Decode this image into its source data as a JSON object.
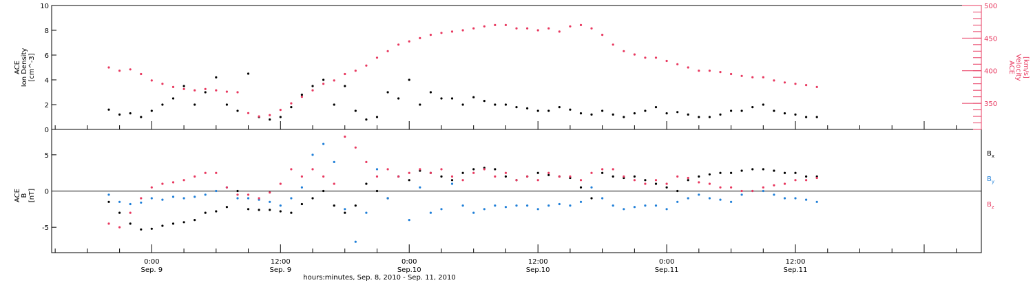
{
  "chart_data": [
    {
      "type": "scatter",
      "panel": "top",
      "ylabel_lines": [
        "ACE",
        "Ion Density",
        "[cm^-3]"
      ],
      "ylabel_right_lines": [
        "ACE",
        "Velocity",
        "[km/s]"
      ],
      "ylim": [
        0,
        10
      ],
      "ylim_right": [
        310,
        500
      ],
      "yticks": [
        "0",
        "2",
        "4",
        "6",
        "8",
        "10"
      ],
      "yticks_right": [
        "350",
        "400",
        "450",
        "500"
      ],
      "series": [
        {
          "axis": "left",
          "color": "#000000",
          "x": [
            -4,
            -3,
            -2,
            -1,
            0,
            1,
            2,
            3,
            4,
            5,
            6,
            7,
            8,
            9,
            10,
            11,
            12,
            13,
            14,
            15,
            16,
            17,
            18,
            19,
            20,
            21,
            22,
            23,
            24,
            25,
            26,
            27,
            28,
            29,
            30,
            31,
            32,
            33,
            34,
            35,
            36,
            37,
            38,
            39,
            40,
            41,
            42,
            43,
            44,
            45,
            46,
            47,
            48,
            49,
            50,
            51,
            52,
            53,
            54,
            55,
            56,
            57,
            58,
            59,
            60,
            61,
            62
          ],
          "values": [
            1.6,
            1.2,
            1.3,
            1.0,
            1.5,
            2.0,
            2.5,
            3.5,
            2.0,
            3.0,
            4.2,
            2.0,
            1.5,
            4.5,
            1.0,
            0.8,
            1.0,
            1.8,
            2.8,
            3.5,
            4.0,
            2.0,
            3.5,
            1.5,
            0.8,
            1.0,
            3.0,
            2.5,
            4.0,
            2.0,
            3.0,
            2.5,
            2.5,
            2.0,
            2.6,
            2.3,
            2.0,
            2.0,
            1.8,
            1.7,
            1.5,
            1.5,
            1.8,
            1.6,
            1.3,
            1.2,
            1.5,
            1.2,
            1.0,
            1.3,
            1.5,
            1.8,
            1.3,
            1.4,
            1.2,
            1.0,
            1.0,
            1.2,
            1.5,
            1.5,
            1.8,
            2.0,
            1.5,
            1.3,
            1.2,
            1.0,
            1.0
          ]
        },
        {
          "axis": "right",
          "color": "#e8385f",
          "x": [
            -4,
            -3,
            -2,
            -1,
            0,
            1,
            2,
            3,
            4,
            5,
            6,
            7,
            8,
            9,
            10,
            11,
            12,
            13,
            14,
            15,
            16,
            17,
            18,
            19,
            20,
            21,
            22,
            23,
            24,
            25,
            26,
            27,
            28,
            29,
            30,
            31,
            32,
            33,
            34,
            35,
            36,
            37,
            38,
            39,
            40,
            41,
            42,
            43,
            44,
            45,
            46,
            47,
            48,
            49,
            50,
            51,
            52,
            53,
            54,
            55,
            56,
            57,
            58,
            59,
            60,
            61,
            62
          ],
          "values": [
            405,
            400,
            402,
            395,
            385,
            380,
            375,
            372,
            370,
            372,
            370,
            368,
            367,
            335,
            330,
            332,
            340,
            350,
            360,
            370,
            380,
            385,
            395,
            400,
            408,
            420,
            430,
            440,
            445,
            450,
            455,
            458,
            460,
            462,
            465,
            468,
            470,
            470,
            465,
            465,
            462,
            465,
            460,
            468,
            470,
            465,
            455,
            440,
            430,
            425,
            420,
            420,
            415,
            410,
            405,
            400,
            400,
            398,
            395,
            392,
            390,
            390,
            385,
            382,
            380,
            378,
            375
          ]
        }
      ]
    },
    {
      "type": "scatter",
      "panel": "bottom",
      "ylabel_lines": [
        "ACE",
        "B",
        "[nT]"
      ],
      "ylim": [
        -8.5,
        8.5
      ],
      "yticks": [
        "-5",
        "0",
        "5"
      ],
      "legend_position": "right",
      "legend": [
        {
          "main": "B",
          "sub": "x",
          "color": "#000000"
        },
        {
          "main": "B",
          "sub": "y",
          "color": "#1f7fd8"
        },
        {
          "main": "B",
          "sub": "z",
          "color": "#e8385f"
        }
      ],
      "series": [
        {
          "component": "x",
          "color": "#000000",
          "x": [
            -4,
            -3,
            -2,
            -1,
            0,
            1,
            2,
            3,
            4,
            5,
            6,
            7,
            8,
            9,
            10,
            11,
            12,
            13,
            14,
            15,
            16,
            17,
            18,
            19,
            20,
            21,
            22,
            23,
            24,
            25,
            26,
            27,
            28,
            29,
            30,
            31,
            32,
            33,
            34,
            35,
            36,
            37,
            38,
            39,
            40,
            41,
            42,
            43,
            44,
            45,
            46,
            47,
            48,
            49,
            50,
            51,
            52,
            53,
            54,
            55,
            56,
            57,
            58,
            59,
            60,
            61,
            62
          ],
          "values": [
            -1.5,
            -3,
            -4.5,
            -5.3,
            -5.2,
            -4.8,
            -4.5,
            -4.3,
            -4.0,
            -3.0,
            -2.8,
            -2.2,
            0.0,
            -2.5,
            -2.6,
            -2.6,
            -2.8,
            -3.0,
            -1.8,
            -1.0,
            0.0,
            -2.0,
            -3.0,
            -2.0,
            1.0,
            0.0,
            -1.0,
            2.0,
            1.5,
            2.8,
            2.5,
            2.0,
            1.5,
            2.5,
            3.0,
            3.2,
            3.0,
            2.0,
            1.5,
            2.0,
            2.5,
            2.2,
            2.0,
            1.8,
            0.5,
            -1.0,
            2.5,
            2.0,
            1.8,
            2.0,
            1.5,
            1.0,
            0.5,
            0.0,
            1.5,
            2.0,
            2.3,
            2.5,
            2.5,
            2.8,
            3.0,
            3.0,
            2.8,
            2.5,
            2.5,
            2.0,
            2.0
          ]
        },
        {
          "component": "y",
          "color": "#1f7fd8",
          "x": [
            -4,
            -3,
            -2,
            -1,
            0,
            1,
            2,
            3,
            4,
            5,
            6,
            7,
            8,
            9,
            10,
            11,
            12,
            13,
            14,
            15,
            16,
            17,
            18,
            19,
            20,
            21,
            22,
            23,
            24,
            25,
            26,
            27,
            28,
            29,
            30,
            31,
            32,
            33,
            34,
            35,
            36,
            37,
            38,
            39,
            40,
            41,
            42,
            43,
            44,
            45,
            46,
            47,
            48,
            49,
            50,
            51,
            52,
            53,
            54,
            55,
            56,
            57,
            58,
            59,
            60,
            61,
            62
          ],
          "values": [
            -0.5,
            -1.5,
            -1.8,
            -1.6,
            -1.0,
            -1.2,
            -0.8,
            -1.0,
            -0.8,
            -0.5,
            0.0,
            0.5,
            -1.0,
            -1.0,
            -1.2,
            -1.5,
            -2.0,
            -1.0,
            0.5,
            5.0,
            6.5,
            4.0,
            -2.5,
            -7.0,
            -3.0,
            3.0,
            -1.0,
            2.0,
            -4.0,
            0.5,
            -3.0,
            -2.5,
            1.0,
            -2.0,
            -3.0,
            -2.5,
            -2.0,
            -2.2,
            -2.0,
            -2.0,
            -2.5,
            -2.0,
            -1.8,
            -2.0,
            -1.5,
            0.5,
            -1.0,
            -2.0,
            -2.5,
            -2.2,
            -2.0,
            -2.0,
            -2.5,
            -1.5,
            -1.0,
            -0.5,
            -1.0,
            -1.2,
            -1.5,
            -0.5,
            0.0,
            0.0,
            -0.5,
            -1.0,
            -1.0,
            -1.2,
            -1.5
          ]
        },
        {
          "component": "z",
          "color": "#e8385f",
          "x": [
            -4,
            -3,
            -2,
            -1,
            0,
            1,
            2,
            3,
            4,
            5,
            6,
            7,
            8,
            9,
            10,
            11,
            12,
            13,
            14,
            15,
            16,
            17,
            18,
            19,
            20,
            21,
            22,
            23,
            24,
            25,
            26,
            27,
            28,
            29,
            30,
            31,
            32,
            33,
            34,
            35,
            36,
            37,
            38,
            39,
            40,
            41,
            42,
            43,
            44,
            45,
            46,
            47,
            48,
            49,
            50,
            51,
            52,
            53,
            54,
            55,
            56,
            57,
            58,
            59,
            60,
            61,
            62
          ],
          "values": [
            -4.5,
            -5.0,
            -3.0,
            -1.0,
            0.5,
            1.0,
            1.2,
            1.5,
            2.0,
            2.5,
            2.5,
            0.5,
            -0.5,
            -0.5,
            -1.0,
            -0.2,
            1.0,
            3.0,
            2.0,
            3.0,
            2.0,
            1.0,
            7.5,
            6.0,
            4.0,
            2.0,
            3.0,
            2.0,
            2.5,
            3.0,
            2.5,
            3.0,
            2.0,
            1.5,
            2.5,
            3.0,
            2.0,
            2.5,
            1.5,
            2.0,
            1.5,
            2.5,
            2.0,
            2.0,
            1.5,
            2.5,
            3.0,
            3.0,
            2.0,
            1.5,
            1.0,
            1.5,
            1.0,
            2.0,
            1.8,
            1.2,
            1.0,
            0.5,
            0.5,
            0.0,
            0.0,
            0.5,
            0.8,
            1.0,
            1.5,
            1.5,
            1.8
          ]
        }
      ]
    }
  ],
  "xaxis": {
    "tick_labels": [
      {
        "hour": 0,
        "time": "0:00",
        "date": "Sep. 9"
      },
      {
        "hour": 12,
        "time": "12:00",
        "date": "Sep. 9"
      },
      {
        "hour": 24,
        "time": "0:00",
        "date": "Sep.10"
      },
      {
        "hour": 36,
        "time": "12:00",
        "date": "Sep.10"
      },
      {
        "hour": 48,
        "time": "0:00",
        "date": "Sep.11"
      },
      {
        "hour": 60,
        "time": "12:00",
        "date": "Sep.11"
      }
    ],
    "xlabel": "hours:minutes, Sep. 8, 2010 - Sep. 11, 2010",
    "xlim": [
      -9.33,
      77.33
    ]
  }
}
